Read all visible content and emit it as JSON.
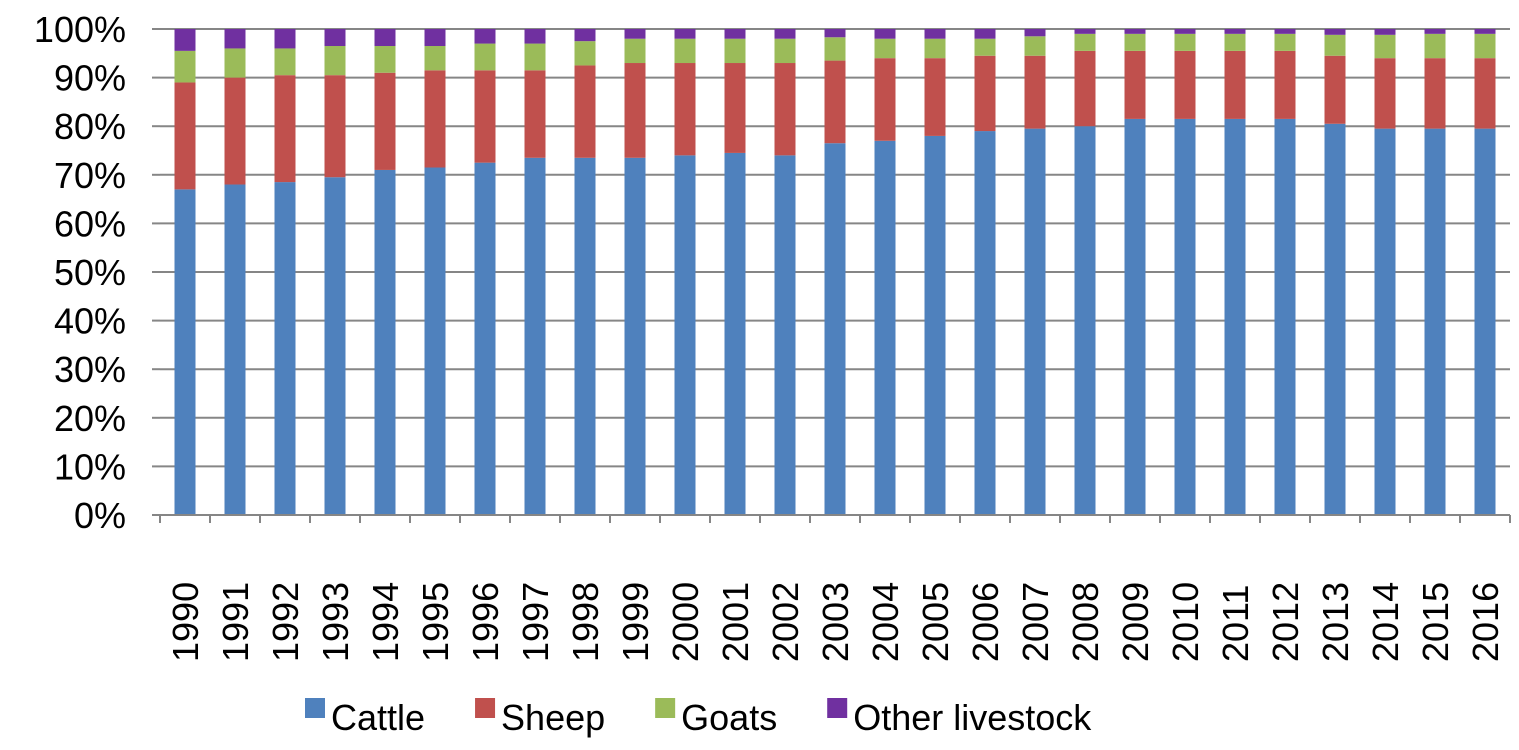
{
  "chart_data": {
    "type": "bar",
    "stacked": true,
    "percent": true,
    "categories": [
      "1990",
      "1991",
      "1992",
      "1993",
      "1994",
      "1995",
      "1996",
      "1997",
      "1998",
      "1999",
      "2000",
      "2001",
      "2002",
      "2003",
      "2004",
      "2005",
      "2006",
      "2007",
      "2008",
      "2009",
      "2010",
      "2011",
      "2012",
      "2013",
      "2014",
      "2015",
      "2016"
    ],
    "series": [
      {
        "name": "Cattle",
        "color": "#4F81BD",
        "values": [
          67,
          68,
          68.5,
          69.5,
          71,
          71.5,
          72.5,
          73.5,
          73.5,
          73.5,
          74,
          74.5,
          74,
          76.5,
          77,
          78,
          79,
          79.5,
          80,
          81.5,
          81.5,
          81.5,
          81.5,
          80.5,
          79.5,
          79.5,
          79.5
        ]
      },
      {
        "name": "Sheep",
        "color": "#C0504D",
        "values": [
          22,
          22,
          22,
          21,
          20,
          20,
          19,
          18,
          19,
          19.5,
          19,
          18.5,
          19,
          17,
          17,
          16,
          15.5,
          15,
          15.5,
          14,
          14,
          14,
          14,
          14,
          14.5,
          14.5,
          14.5
        ]
      },
      {
        "name": "Goats",
        "color": "#9BBB59",
        "values": [
          6.5,
          6,
          5.5,
          6,
          5.5,
          5,
          5.5,
          5.5,
          5,
          5,
          5,
          5,
          5,
          4.8,
          4,
          4,
          3.5,
          4,
          3.5,
          3.5,
          3.5,
          3.5,
          3.5,
          4.3,
          4.8,
          5,
          5
        ]
      },
      {
        "name": "Other livestock",
        "color": "#7030A0",
        "values": [
          4.5,
          4,
          4,
          3.5,
          3.5,
          3.5,
          3,
          3,
          2.5,
          2,
          2,
          2,
          2,
          1.7,
          2,
          2,
          2,
          1.5,
          1,
          1,
          1,
          1,
          1,
          1.2,
          1.2,
          1,
          1
        ]
      }
    ],
    "y_ticks": [
      "0%",
      "10%",
      "20%",
      "30%",
      "40%",
      "50%",
      "60%",
      "70%",
      "80%",
      "90%",
      "100%"
    ],
    "ylim": [
      0,
      100
    ],
    "grid": "horizontal",
    "legend": "bottom",
    "title": "",
    "xlabel": "",
    "ylabel": ""
  }
}
